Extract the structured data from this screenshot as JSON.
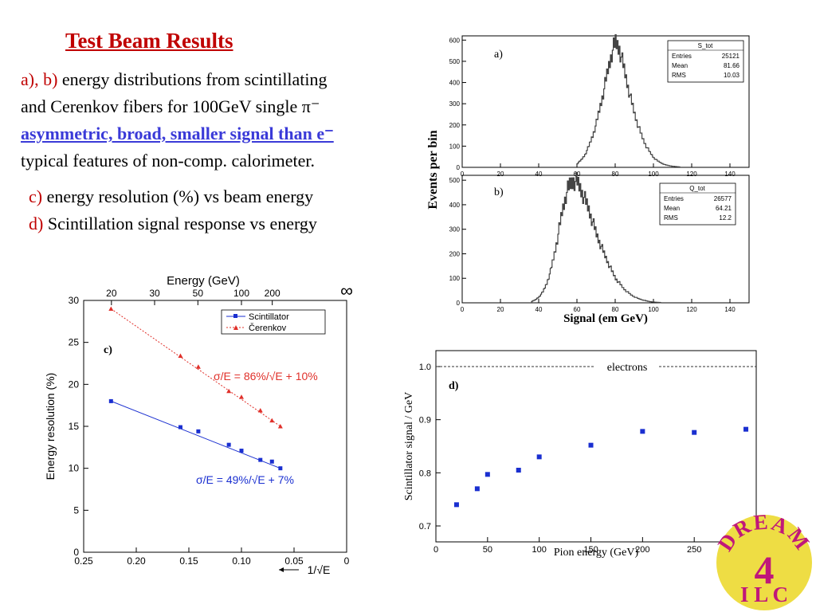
{
  "slide": {
    "title": "Test Beam Results",
    "lines": [
      {
        "label": "a), b)",
        "text": " energy distributions from scintillating"
      },
      {
        "label": "",
        "text": "and Cerenkov fibers for 100GeV single π⁻"
      },
      {
        "label": "",
        "text": "asymmetric, broad, smaller signal than e⁻"
      },
      {
        "label": "",
        "text": "typical features of non-comp. calorimeter."
      },
      {
        "label": "c)",
        "text": " energy resolution (%) vs beam energy"
      },
      {
        "label": "d)",
        "text": " Scintillation signal response vs energy"
      }
    ],
    "logo": {
      "top": "DREAM",
      "middle": "4",
      "bottom": "I L C",
      "color": "#c0177a",
      "bg": "#eedd44"
    }
  },
  "chart_data": [
    {
      "type": "histogram",
      "panel_label": "a)",
      "title": "S_tot",
      "stats": {
        "Entries": "25121",
        "Mean": "81.66",
        "RMS": "10.03"
      },
      "xlabel": "Signal (em GeV)",
      "ylabel": "Events per bin",
      "xlim": [
        0,
        150
      ],
      "ylim": [
        0,
        620
      ],
      "xticks": [
        "0",
        "20",
        "40",
        "60",
        "80",
        "100",
        "120",
        "140"
      ],
      "yticks": [
        "0",
        "100",
        "200",
        "300",
        "400",
        "500",
        "600"
      ],
      "peak": 80,
      "sigma": 10.03,
      "max": 600,
      "x": [
        60,
        62,
        64,
        66,
        68,
        70,
        72,
        74,
        76,
        78,
        80,
        82,
        84,
        86,
        88,
        90,
        92,
        94,
        96,
        98,
        100,
        102,
        104,
        106,
        108,
        110,
        112,
        114
      ],
      "y": [
        18,
        35,
        60,
        100,
        150,
        210,
        290,
        370,
        460,
        540,
        590,
        560,
        480,
        400,
        320,
        250,
        190,
        140,
        100,
        70,
        45,
        30,
        20,
        12,
        8,
        5,
        3,
        2
      ]
    },
    {
      "type": "histogram",
      "panel_label": "b)",
      "title": "Q_tot",
      "stats": {
        "Entries": "26577",
        "Mean": "64.21",
        "RMS": "12.2"
      },
      "xlabel": "Signal (em GeV)",
      "xlim": [
        0,
        150
      ],
      "ylim": [
        0,
        520
      ],
      "xticks": [
        "0",
        "20",
        "40",
        "60",
        "80",
        "100",
        "120",
        "140"
      ],
      "yticks": [
        "0",
        "100",
        "200",
        "300",
        "400",
        "500"
      ],
      "x": [
        36,
        38,
        40,
        42,
        44,
        46,
        48,
        50,
        52,
        54,
        56,
        58,
        60,
        62,
        64,
        66,
        68,
        70,
        72,
        74,
        76,
        78,
        80,
        82,
        84,
        86,
        88,
        90,
        92,
        94,
        96,
        98,
        100,
        102,
        104
      ],
      "y": [
        5,
        12,
        25,
        45,
        80,
        130,
        200,
        280,
        370,
        440,
        480,
        500,
        490,
        460,
        420,
        380,
        330,
        280,
        240,
        200,
        165,
        130,
        100,
        80,
        60,
        45,
        33,
        24,
        17,
        12,
        8,
        5,
        3,
        2,
        1
      ]
    },
    {
      "type": "line",
      "panel_label": "c)",
      "xlabel": "1/√E",
      "ylabel": "Energy resolution (%)",
      "top_axis_label": "Energy (GeV)",
      "xlim": [
        0.25,
        0
      ],
      "ylim": [
        0,
        30
      ],
      "xticks": [
        "0.25",
        "0.20",
        "0.15",
        "0.10",
        "0.05",
        "0"
      ],
      "yticks": [
        "0",
        "5",
        "10",
        "15",
        "20",
        "25",
        "30"
      ],
      "top_ticks": [
        "20",
        "30",
        "50",
        "100",
        "200",
        "∞"
      ],
      "legend": [
        "Scintillator",
        "Čerenkov"
      ],
      "series": [
        {
          "name": "Scintillator",
          "color": "#1a2fd0",
          "x": [
            0.224,
            0.158,
            0.141,
            0.112,
            0.1,
            0.082,
            0.071,
            0.063
          ],
          "y": [
            18.0,
            14.9,
            14.4,
            12.8,
            12.1,
            11.0,
            10.8,
            10.0
          ]
        },
        {
          "name": "Čerenkov",
          "color": "#e0302a",
          "x": [
            0.224,
            0.158,
            0.141,
            0.112,
            0.1,
            0.082,
            0.071,
            0.063
          ],
          "y": [
            29.0,
            23.4,
            22.1,
            19.2,
            18.5,
            16.9,
            15.7,
            15.0
          ]
        }
      ],
      "fit_scint": "σ/E = 49%/√E + 7%",
      "fit_cer": "σ/E = 86%/√E + 10%"
    },
    {
      "type": "scatter",
      "panel_label": "d)",
      "xlabel": "Pion energy (GeV)",
      "ylabel": "Scintillator signal / GeV",
      "xlim": [
        0,
        310
      ],
      "ylim": [
        0.67,
        1.03
      ],
      "xticks": [
        "0",
        "50",
        "100",
        "150",
        "200",
        "250"
      ],
      "yticks": [
        "0.7",
        "0.8",
        "0.9",
        "1.0"
      ],
      "reference": {
        "label": "electrons",
        "y": 1.0
      },
      "x": [
        20,
        40,
        50,
        80,
        100,
        150,
        200,
        250,
        300
      ],
      "y": [
        0.74,
        0.77,
        0.797,
        0.805,
        0.83,
        0.852,
        0.878,
        0.876,
        0.882
      ]
    }
  ]
}
